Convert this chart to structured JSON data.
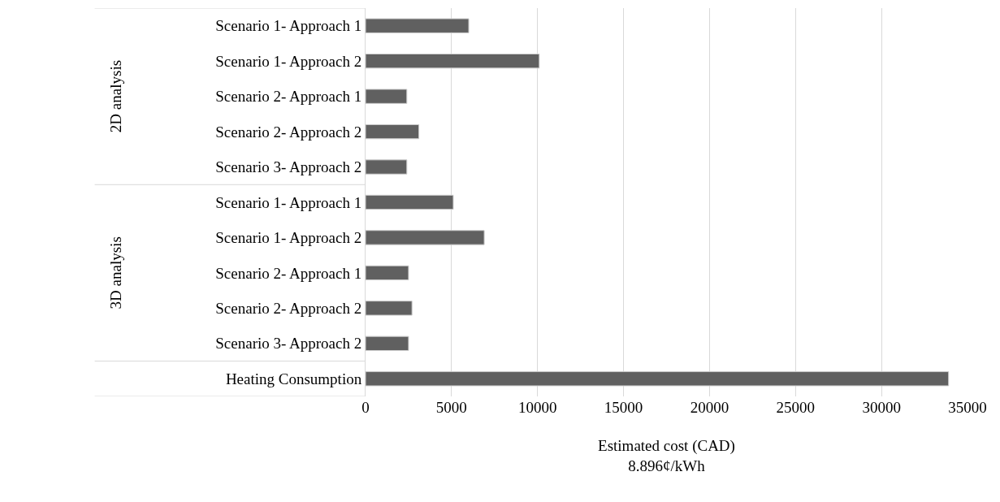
{
  "chart_data": {
    "type": "bar",
    "orientation": "horizontal",
    "categories": [
      "Scenario 1- Approach 1",
      "Scenario 1- Approach 2",
      "Scenario 2- Approach 1",
      "Scenario 2- Approach 2",
      "Scenario 3- Approach 2",
      "Scenario 1- Approach 1",
      "Scenario 1- Approach 2",
      "Scenario 2- Approach 1",
      "Scenario 2- Approach 2",
      "Scenario 3- Approach 2",
      "Heating Consumption"
    ],
    "values": [
      6000,
      10100,
      2400,
      3100,
      2400,
      5100,
      6900,
      2500,
      2700,
      2500,
      33900
    ],
    "color": "#606060",
    "xlim": [
      0,
      35000
    ],
    "xticks": [
      0,
      5000,
      10000,
      15000,
      20000,
      25000,
      30000,
      35000
    ],
    "xlabel": "Estimated cost (CAD)\n8.896¢/kWh",
    "annotations": [
      "2D analysis",
      "3D analysis"
    ],
    "grid": "x",
    "legend": false
  }
}
